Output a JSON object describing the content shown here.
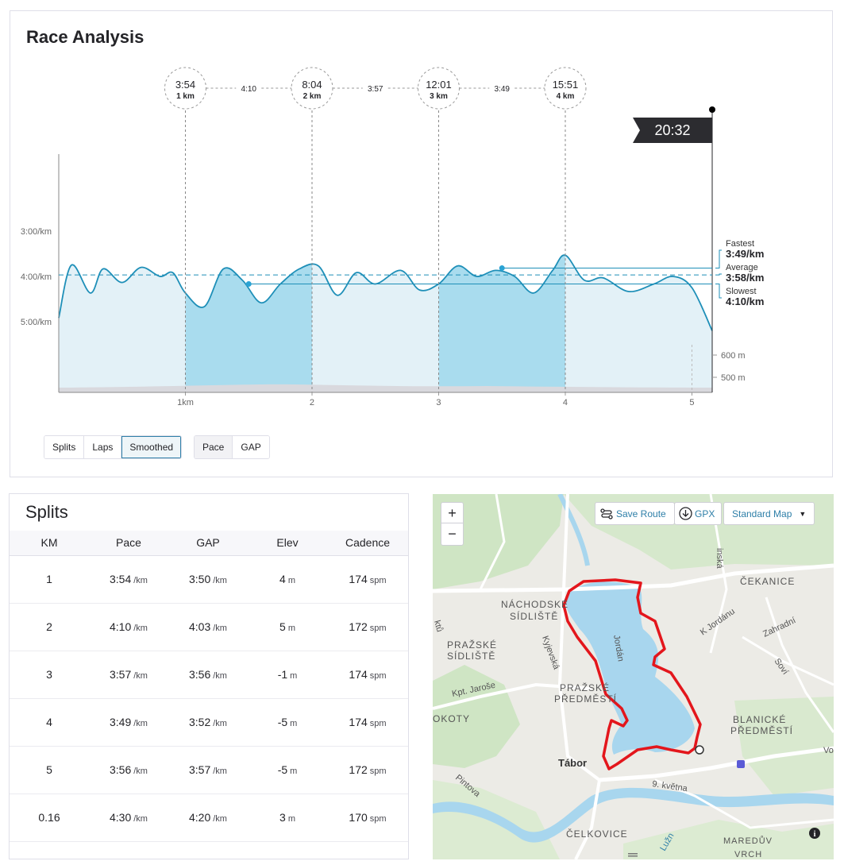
{
  "race": {
    "title": "Race Analysis",
    "finish_time": "20:32",
    "markers": [
      {
        "time": "3:54",
        "dist": "1 km"
      },
      {
        "time": "8:04",
        "dist": "2 km"
      },
      {
        "time": "12:01",
        "dist": "3 km"
      },
      {
        "time": "15:51",
        "dist": "4 km"
      }
    ],
    "segment_paces": [
      "4:10",
      "3:57",
      "3:49"
    ],
    "legend": {
      "fastest_label": "Fastest",
      "fastest_value": "3:49/km",
      "average_label": "Average",
      "average_value": "3:58/km",
      "slowest_label": "Slowest",
      "slowest_value": "4:10/km"
    },
    "buttons_view": [
      "Splits",
      "Laps",
      "Smoothed"
    ],
    "buttons_metric": [
      "Pace",
      "GAP"
    ],
    "active_view": "Smoothed",
    "active_metric": "Pace"
  },
  "chart_data": {
    "type": "area",
    "title": "",
    "xlabel": "",
    "ylabel": "",
    "x_ticks": [
      "1km",
      "2",
      "3",
      "4",
      "5"
    ],
    "y_ticks": [
      "3:00/km",
      "4:00/km",
      "5:00/km"
    ],
    "elev_ticks": [
      "600 m",
      "500 m"
    ],
    "series": [
      {
        "name": "Pace",
        "x": [
          0,
          0.1,
          0.25,
          0.35,
          0.5,
          0.65,
          0.8,
          0.9,
          1.0,
          1.15,
          1.3,
          1.45,
          1.6,
          1.75,
          1.9,
          2.05,
          2.2,
          2.35,
          2.5,
          2.7,
          2.85,
          3.0,
          3.15,
          3.3,
          3.45,
          3.6,
          3.75,
          3.9,
          4.0,
          4.15,
          4.3,
          4.5,
          4.7,
          4.85,
          5.0,
          5.16
        ],
        "y_sec_per_km": [
          295,
          225,
          262,
          230,
          248,
          228,
          240,
          235,
          262,
          280,
          230,
          245,
          275,
          250,
          230,
          226,
          265,
          235,
          250,
          232,
          258,
          250,
          226,
          240,
          232,
          240,
          262,
          232,
          212,
          245,
          242,
          260,
          250,
          240,
          255,
          312
        ]
      }
    ],
    "avg_pace_sec": 238,
    "fastest_pace_sec": 229,
    "slowest_pace_sec": 250,
    "y_range_sec": [
      180,
      300
    ],
    "x_range_km": [
      0,
      5.16
    ]
  },
  "splits": {
    "title": "Splits",
    "headers": [
      "KM",
      "Pace",
      "GAP",
      "Elev",
      "Cadence"
    ],
    "rows": [
      {
        "km": "1",
        "pace": "3:54",
        "gap": "3:50",
        "elev": "4",
        "cad": "174"
      },
      {
        "km": "2",
        "pace": "4:10",
        "gap": "4:03",
        "elev": "5",
        "cad": "172"
      },
      {
        "km": "3",
        "pace": "3:57",
        "gap": "3:56",
        "elev": "-1",
        "cad": "174"
      },
      {
        "km": "4",
        "pace": "3:49",
        "gap": "3:52",
        "elev": "-5",
        "cad": "174"
      },
      {
        "km": "5",
        "pace": "3:56",
        "gap": "3:57",
        "elev": "-5",
        "cad": "172"
      },
      {
        "km": "0.16",
        "pace": "4:30",
        "gap": "4:20",
        "elev": "3",
        "cad": "170"
      }
    ],
    "units": {
      "pace": "/km",
      "gap": "/km",
      "elev": "m",
      "cad": "spm"
    }
  },
  "map": {
    "zoom_in": "+",
    "zoom_out": "−",
    "save_route": "Save Route",
    "gpx": "GPX",
    "map_style": "Standard Map",
    "labels": [
      "NÁCHODSKÉ",
      "SÍDLIŠTĚ",
      "PRAŽSKÉ",
      "SÍDLIŠTĚ",
      "PRAŽSKÉ",
      "PŘEDMĚSTÍ",
      "ČEKANICE",
      "BLANICKÉ",
      "PŘEDMĚSTÍ",
      "Tábor",
      "OKOTY",
      "ČELKOVICE",
      "MAREDŮV",
      "Jordán",
      "K Jordánu",
      "Zahradní",
      "Kyjevská",
      "Kpt. Jaroše",
      "Soví",
      "9. května",
      "Pintova",
      "Lužn",
      "inská",
      "Vo",
      "VRCH",
      "ktů"
    ]
  }
}
